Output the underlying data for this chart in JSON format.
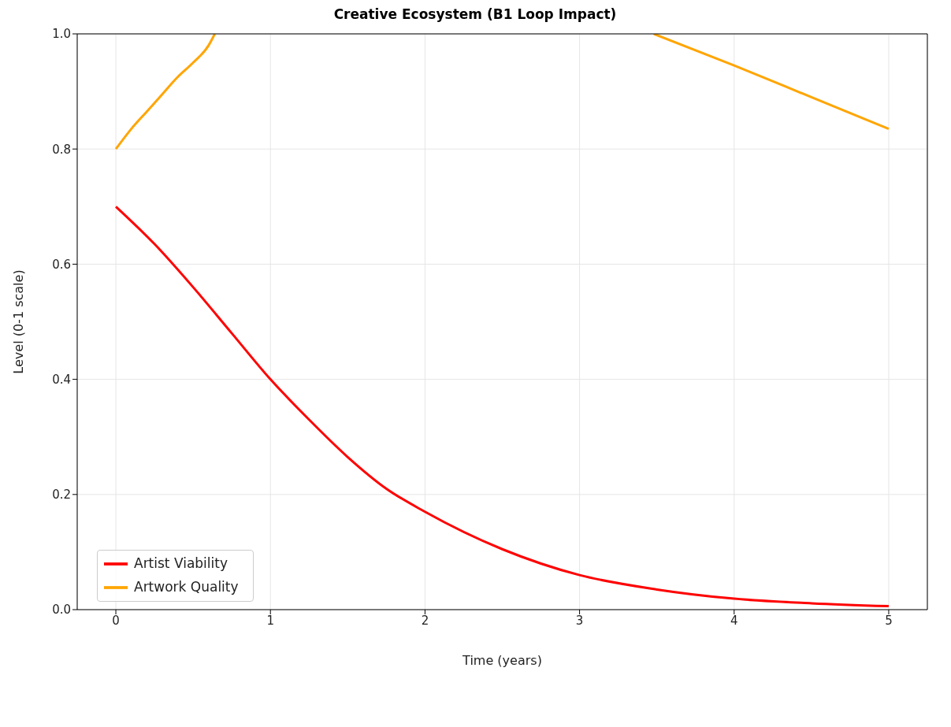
{
  "chart_data": {
    "type": "line",
    "title": "Creative Ecosystem (B1 Loop Impact)",
    "xlabel": "Time (years)",
    "ylabel": "Level (0-1 scale)",
    "xlim": [
      -0.25,
      5.25
    ],
    "xticks": [
      0,
      1,
      2,
      3,
      4,
      5
    ],
    "ylim": [
      0,
      1
    ],
    "yticks": [
      {
        "value": 0,
        "label": "0.0"
      },
      0.2,
      0.4,
      0.6,
      0.8,
      {
        "value": 1,
        "label": "1.0"
      }
    ],
    "grid": true,
    "legend": "bottom left",
    "line_style": "solid",
    "marker": "none",
    "series": [
      {
        "name": "Artist Viability",
        "color": "#ff0000",
        "x": [
          0,
          0.25,
          0.5,
          0.75,
          1,
          1.25,
          1.5,
          1.75,
          2,
          2.5,
          3,
          3.5,
          4,
          4.5,
          5
        ],
        "values": [
          0.7,
          0.635,
          0.56,
          0.48,
          0.4,
          0.33,
          0.265,
          0.21,
          0.17,
          0.105,
          0.06,
          0.035,
          0.019,
          0.011,
          0.006
        ]
      },
      {
        "name": "Artwork Quality",
        "color": "#ffa500",
        "x": [
          0,
          0.1,
          0.2,
          0.3,
          0.4,
          0.5,
          0.6,
          0.64,
          2,
          3.48,
          4,
          4.5,
          5
        ],
        "values": [
          0.8,
          0.835,
          0.865,
          0.895,
          0.925,
          0.95,
          0.98,
          1.0,
          null,
          1.0,
          0.945,
          0.89,
          0.835
        ]
      }
    ]
  }
}
